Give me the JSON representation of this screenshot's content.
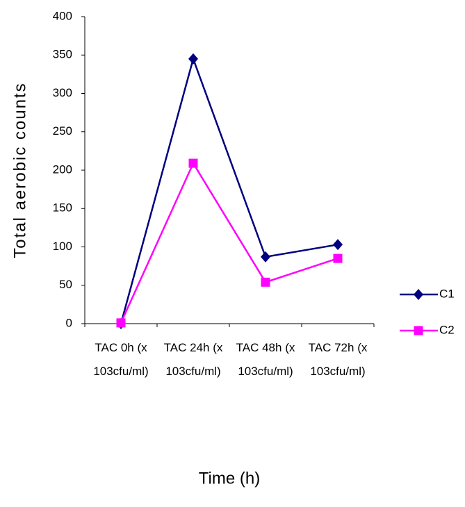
{
  "chart_data": {
    "type": "line",
    "x_label": "Time (h)",
    "y_label": "Total aerobic counts",
    "categories": [
      "TAC 0h (x 103cfu/ml)",
      "TAC 24h (x 103cfu/ml)",
      "TAC 48h (x 103cfu/ml)",
      "TAC 72h (x 103cfu/ml)"
    ],
    "series": [
      {
        "name": "C1",
        "color": "#000080",
        "marker": "diamond",
        "values": [
          0,
          345,
          87,
          103
        ]
      },
      {
        "name": "C2",
        "color": "#ff00ff",
        "marker": "square",
        "values": [
          1,
          209,
          54,
          85
        ]
      }
    ],
    "ylim": [
      0,
      400
    ],
    "yticks": [
      0,
      50,
      100,
      150,
      200,
      250,
      300,
      350,
      400
    ],
    "grid": false,
    "legend": "right"
  }
}
